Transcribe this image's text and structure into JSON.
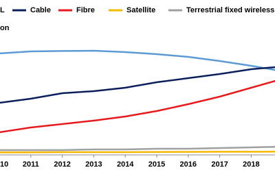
{
  "chart_data": {
    "type": "line",
    "y_label": "on",
    "categories": [
      "10",
      "2011",
      "2012",
      "2013",
      "2014",
      "2015",
      "2016",
      "2017",
      "2018",
      null
    ],
    "series": [
      {
        "name": "L",
        "color": "#5b9bd5",
        "values": [
          74,
          75.5,
          75.8,
          76,
          75,
          73.5,
          71.5,
          68.5,
          65,
          61
        ]
      },
      {
        "name": "Cable",
        "color": "#0b1f5c",
        "values": [
          38,
          41,
          45,
          46.5,
          49,
          53,
          56,
          59,
          62.5,
          64.5
        ]
      },
      {
        "name": "Fibre",
        "color": "#e8191d",
        "values": [
          16.5,
          20,
          22.5,
          25,
          28,
          32,
          37,
          42.5,
          49,
          55.5
        ]
      },
      {
        "name": "Satellite",
        "color": "#f5b800",
        "values": [
          1.8,
          1.9,
          2,
          2,
          2,
          2.1,
          2.2,
          2.3,
          2.3,
          2.4
        ]
      },
      {
        "name": "Terrestrial fixed wireless",
        "color": "#a0a0a0",
        "values": [
          3.5,
          3.5,
          3.5,
          4,
          4,
          4.5,
          4.5,
          5,
          5.5,
          6
        ]
      }
    ],
    "ylim": [
      0,
      85
    ]
  }
}
